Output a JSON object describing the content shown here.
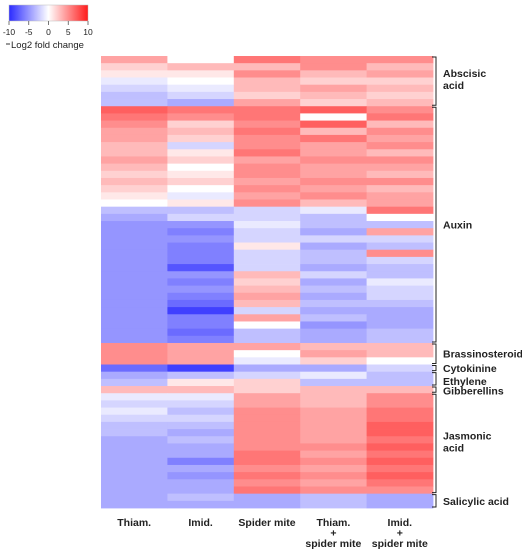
{
  "chart_data": {
    "type": "heatmap",
    "title": "",
    "xlabel": "",
    "ylabel": "",
    "columns": [
      [
        "Thiam."
      ],
      [
        "Imid."
      ],
      [
        "Spider mite"
      ],
      [
        "Thiam.",
        "+",
        "spider mite"
      ],
      [
        "Imid.",
        "+",
        "spider mite"
      ]
    ],
    "colorbar": {
      "ticks": [
        "-10",
        "-5",
        "0",
        "5",
        "10"
      ],
      "label": "Log2 fold change",
      "range": [
        -10,
        10
      ],
      "colors": {
        "low": "#2b2bff",
        "mid": "#ffffff",
        "high": "#ff1a1a"
      }
    },
    "groups": [
      {
        "name": "Abscisic acid",
        "rows": 7
      },
      {
        "name": "Auxin",
        "rows": 33
      },
      {
        "name": "Brassinosteroids",
        "rows": 3
      },
      {
        "name": "Cytokinine",
        "rows": 1
      },
      {
        "name": "Ethylene",
        "rows": 2
      },
      {
        "name": "Gibberellins",
        "rows": 1
      },
      {
        "name": "Jasmonic acid",
        "rows": 14
      },
      {
        "name": "Salicylic acid",
        "rows": 2
      }
    ],
    "values": [
      [
        4,
        0,
        6,
        5,
        5
      ],
      [
        2,
        3,
        3,
        5,
        3
      ],
      [
        1,
        1,
        5,
        3,
        4
      ],
      [
        -1,
        0,
        3,
        2,
        2
      ],
      [
        -2,
        -1,
        3,
        4,
        3
      ],
      [
        -3,
        -2,
        2,
        3,
        2
      ],
      [
        -3,
        -4,
        4,
        2,
        3
      ],
      [
        7,
        6,
        6,
        7,
        5
      ],
      [
        6,
        5,
        6,
        0,
        6
      ],
      [
        5,
        2,
        5,
        7,
        3
      ],
      [
        4,
        3,
        6,
        3,
        5
      ],
      [
        4,
        2,
        5,
        6,
        4
      ],
      [
        3,
        -2,
        5,
        4,
        5
      ],
      [
        3,
        1,
        6,
        4,
        3
      ],
      [
        4,
        2,
        4,
        5,
        5
      ],
      [
        3,
        0,
        5,
        4,
        4
      ],
      [
        2,
        1,
        5,
        4,
        3
      ],
      [
        3,
        2,
        4,
        5,
        5
      ],
      [
        2,
        0,
        5,
        4,
        3
      ],
      [
        1,
        -1,
        4,
        5,
        4
      ],
      [
        0,
        1,
        5,
        3,
        4
      ],
      [
        -3,
        -3,
        -2,
        -1,
        6
      ],
      [
        -4,
        -2,
        -2,
        -3,
        0
      ],
      [
        -5,
        -5,
        -1,
        -3,
        -3
      ],
      [
        -5,
        -6,
        -2,
        -4,
        4
      ],
      [
        -5,
        -5,
        -2,
        -2,
        -2
      ],
      [
        -5,
        -6,
        1,
        -4,
        -3
      ],
      [
        -5,
        -6,
        -2,
        -3,
        5
      ],
      [
        -5,
        -6,
        -2,
        -3,
        -2
      ],
      [
        -5,
        -8,
        -2,
        -4,
        -3
      ],
      [
        -5,
        -5,
        3,
        -2,
        -3
      ],
      [
        -5,
        -6,
        2,
        -4,
        -1
      ],
      [
        -5,
        -5,
        3,
        -3,
        -2
      ],
      [
        -5,
        -6,
        4,
        -4,
        -2
      ],
      [
        -5,
        -7,
        3,
        -3,
        -3
      ],
      [
        -5,
        -9,
        -2,
        -4,
        -4
      ],
      [
        -5,
        -6,
        4,
        -3,
        -4
      ],
      [
        -5,
        -6,
        0,
        -5,
        -4
      ],
      [
        -5,
        -7,
        -3,
        -4,
        -3
      ],
      [
        -5,
        -6,
        -3,
        -4,
        -3
      ],
      [
        5,
        4,
        4,
        3,
        3
      ],
      [
        5,
        4,
        0,
        4,
        3
      ],
      [
        5,
        4,
        -1,
        2,
        0
      ],
      [
        -7,
        -9,
        -4,
        -4,
        -2
      ],
      [
        -4,
        -3,
        -2,
        -1,
        -3
      ],
      [
        -3,
        1,
        2,
        -3,
        -3
      ],
      [
        3,
        3,
        2,
        3,
        3
      ],
      [
        -1,
        -1,
        4,
        3,
        5
      ],
      [
        -2,
        -2,
        4,
        3,
        5
      ],
      [
        -1,
        -3,
        5,
        4,
        6
      ],
      [
        -2,
        -2,
        5,
        4,
        6
      ],
      [
        -3,
        -3,
        5,
        4,
        7
      ],
      [
        -3,
        -4,
        5,
        4,
        7
      ],
      [
        -4,
        -3,
        5,
        4,
        6
      ],
      [
        -4,
        -4,
        5,
        5,
        7
      ],
      [
        -4,
        -4,
        6,
        4,
        6
      ],
      [
        -4,
        -6,
        6,
        5,
        7
      ],
      [
        -4,
        -4,
        5,
        4,
        6
      ],
      [
        -4,
        -5,
        6,
        5,
        7
      ],
      [
        -4,
        -4,
        5,
        4,
        6
      ],
      [
        -4,
        -4,
        6,
        5,
        5
      ],
      [
        -4,
        -3,
        -4,
        -3,
        -4
      ],
      [
        -4,
        -4,
        -4,
        -3,
        -4
      ]
    ]
  }
}
